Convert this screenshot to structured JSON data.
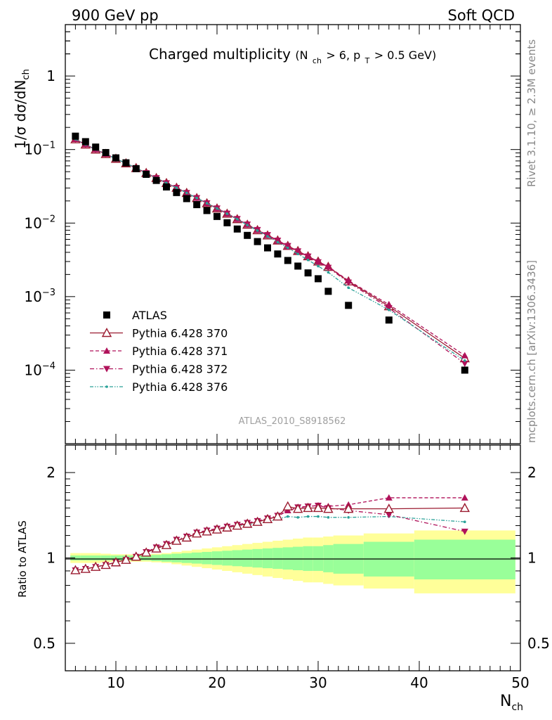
{
  "header": {
    "left": "900 GeV pp",
    "right": "Soft QCD",
    "side_top": "Rivet 3.1.10, ≥ 2.3M events",
    "side_bottom": "mcplots.cern.ch [arXiv:1306.3436]"
  },
  "colors": {
    "atlas": "#000000",
    "p370": "#9b1b30",
    "p371": "#b0125a",
    "p372": "#b0125a",
    "p376": "#2aa198",
    "band_inner": "#99ff99",
    "band_outer": "#ffff99"
  },
  "chart_data": [
    {
      "type": "scatter",
      "title": "Charged multiplicity",
      "title_cuts": {
        "a": "(N",
        "a_sub": "ch",
        "b": " > 6, p",
        "b_sub": "T",
        "c": " > 0.5 GeV)"
      },
      "ylabel": "1/σ dσ/dN",
      "ylabel_sub": "ch",
      "yscale": "log",
      "ylim": [
        1e-05,
        5
      ],
      "xlim": [
        5,
        50
      ],
      "ytick_labels": [
        {
          "value": 1,
          "base": "1",
          "exp": ""
        },
        {
          "value": 0.1,
          "base": "10",
          "exp": "−1"
        },
        {
          "value": 0.01,
          "base": "10",
          "exp": "−2"
        },
        {
          "value": 0.001,
          "base": "10",
          "exp": "−3"
        },
        {
          "value": 0.0001,
          "base": "10",
          "exp": "−4"
        }
      ],
      "watermark": "ATLAS_2010_S8918562",
      "legend_position": "bottom-left",
      "x": [
        6,
        7,
        8,
        9,
        10,
        11,
        12,
        13,
        14,
        15,
        16,
        17,
        18,
        19,
        20,
        21,
        22,
        23,
        24,
        25,
        26,
        27,
        28,
        29,
        30,
        31,
        33,
        37,
        44.5
      ],
      "series": [
        {
          "name": "ATLAS",
          "key": "atlas",
          "marker": "square",
          "line": "none",
          "values": [
            0.152,
            0.128,
            0.108,
            0.091,
            0.077,
            0.066,
            0.055,
            0.046,
            0.038,
            0.031,
            0.026,
            0.0215,
            0.0178,
            0.0148,
            0.0123,
            0.0101,
            0.0083,
            0.0068,
            0.0056,
            0.0046,
            0.0038,
            0.0031,
            0.0026,
            0.0021,
            0.00175,
            0.00118,
            0.00076,
            0.00048,
            0.0001
          ]
        },
        {
          "name": "Pythia 6.428 370",
          "key": "p370",
          "marker": "triangle-up-open",
          "line": "solid",
          "values": [
            0.138,
            0.117,
            0.1,
            0.087,
            0.075,
            0.065,
            0.056,
            0.048,
            0.041,
            0.035,
            0.0302,
            0.0257,
            0.0219,
            0.0186,
            0.0158,
            0.0134,
            0.0113,
            0.0095,
            0.008,
            0.0068,
            0.0058,
            0.0049,
            0.00417,
            0.00354,
            0.003,
            0.00254,
            0.00161,
            0.00074,
            0.000145
          ]
        },
        {
          "name": "Pythia 6.428 371",
          "key": "p371",
          "marker": "triangle-up",
          "line": "dashed",
          "values": [
            0.138,
            0.117,
            0.1,
            0.087,
            0.075,
            0.065,
            0.056,
            0.048,
            0.041,
            0.035,
            0.0302,
            0.0257,
            0.0219,
            0.0186,
            0.0158,
            0.0134,
            0.0113,
            0.0095,
            0.008,
            0.0068,
            0.0057,
            0.0048,
            0.0041,
            0.0035,
            0.003,
            0.00256,
            0.00165,
            0.00078,
            0.000158
          ]
        },
        {
          "name": "Pythia 6.428 372",
          "key": "p372",
          "marker": "triangle-down",
          "line": "dashdot",
          "values": [
            0.138,
            0.117,
            0.1,
            0.087,
            0.075,
            0.065,
            0.056,
            0.048,
            0.041,
            0.035,
            0.0302,
            0.0258,
            0.022,
            0.0187,
            0.0159,
            0.0135,
            0.0114,
            0.0096,
            0.0081,
            0.0069,
            0.0058,
            0.0049,
            0.00415,
            0.00352,
            0.00295,
            0.00248,
            0.00156,
            0.0007,
            0.000123
          ]
        },
        {
          "name": "Pythia 6.428 376",
          "key": "p376",
          "marker": "dot",
          "line": "dashdotdot",
          "values": [
            0.138,
            0.117,
            0.1,
            0.087,
            0.075,
            0.065,
            0.056,
            0.048,
            0.041,
            0.035,
            0.0302,
            0.0257,
            0.0219,
            0.0186,
            0.0158,
            0.0134,
            0.0113,
            0.0094,
            0.0079,
            0.0066,
            0.0055,
            0.0046,
            0.0038,
            0.00315,
            0.0026,
            0.00214,
            0.00132,
            0.00066,
            0.000135
          ]
        }
      ]
    },
    {
      "type": "scatter",
      "ylabel": "Ratio to ATLAS",
      "xlabel": "N",
      "xlabel_sub": "ch",
      "yscale": "log",
      "ylim": [
        0.4,
        2.5
      ],
      "xlim": [
        5,
        50
      ],
      "ytick_labels": [
        {
          "value": 2,
          "label": "2"
        },
        {
          "value": 1,
          "label": "1"
        },
        {
          "value": 0.5,
          "label": "0.5"
        }
      ],
      "xtick_labels": [
        {
          "value": 10,
          "label": "10"
        },
        {
          "value": 20,
          "label": "20"
        },
        {
          "value": 30,
          "label": "30"
        },
        {
          "value": 40,
          "label": "40"
        },
        {
          "value": 50,
          "label": "50"
        }
      ],
      "x": [
        6,
        7,
        8,
        9,
        10,
        11,
        12,
        13,
        14,
        15,
        16,
        17,
        18,
        19,
        20,
        21,
        22,
        23,
        24,
        25,
        26,
        27,
        28,
        29,
        30,
        31,
        33,
        37,
        44.5
      ],
      "uncertainty_bands": {
        "edges": [
          5.5,
          6.5,
          7.5,
          8.5,
          9.5,
          10.5,
          11.5,
          12.5,
          13.5,
          14.5,
          15.5,
          16.5,
          17.5,
          18.5,
          19.5,
          20.5,
          21.5,
          22.5,
          23.5,
          24.5,
          25.5,
          26.5,
          27.5,
          28.5,
          29.5,
          30.5,
          31.5,
          34.5,
          39.5,
          49.5
        ],
        "inner": [
          0.02,
          0.02,
          0.02,
          0.02,
          0.02,
          0.02,
          0.02,
          0.02,
          0.025,
          0.03,
          0.035,
          0.04,
          0.045,
          0.05,
          0.055,
          0.06,
          0.065,
          0.07,
          0.075,
          0.08,
          0.085,
          0.09,
          0.095,
          0.1,
          0.1,
          0.11,
          0.12,
          0.14,
          0.16
        ],
        "outer": [
          0.04,
          0.04,
          0.04,
          0.035,
          0.03,
          0.03,
          0.03,
          0.03,
          0.035,
          0.04,
          0.05,
          0.06,
          0.07,
          0.08,
          0.09,
          0.1,
          0.11,
          0.12,
          0.13,
          0.14,
          0.15,
          0.16,
          0.17,
          0.18,
          0.18,
          0.19,
          0.2,
          0.22,
          0.25
        ]
      },
      "series": [
        {
          "name": "Pythia 6.428 370",
          "key": "p370",
          "marker": "triangle-up-open",
          "line": "solid",
          "values": [
            0.905,
            0.915,
            0.93,
            0.945,
            0.965,
            0.985,
            1.01,
            1.045,
            1.08,
            1.11,
            1.15,
            1.18,
            1.22,
            1.24,
            1.26,
            1.28,
            1.3,
            1.32,
            1.34,
            1.37,
            1.4,
            1.52,
            1.49,
            1.5,
            1.5,
            1.49,
            1.49,
            1.49,
            1.5
          ]
        },
        {
          "name": "Pythia 6.428 371",
          "key": "p371",
          "marker": "triangle-up",
          "line": "dashed",
          "values": [
            0.905,
            0.915,
            0.93,
            0.945,
            0.965,
            0.985,
            1.01,
            1.045,
            1.08,
            1.11,
            1.15,
            1.18,
            1.22,
            1.24,
            1.26,
            1.28,
            1.3,
            1.32,
            1.34,
            1.37,
            1.4,
            1.47,
            1.5,
            1.52,
            1.53,
            1.52,
            1.54,
            1.63,
            1.63
          ]
        },
        {
          "name": "Pythia 6.428 372",
          "key": "p372",
          "marker": "triangle-down",
          "line": "dashdot",
          "values": [
            0.905,
            0.915,
            0.93,
            0.945,
            0.965,
            0.985,
            1.01,
            1.05,
            1.09,
            1.12,
            1.16,
            1.19,
            1.23,
            1.25,
            1.27,
            1.29,
            1.31,
            1.33,
            1.35,
            1.38,
            1.41,
            1.48,
            1.51,
            1.52,
            1.53,
            1.5,
            1.47,
            1.42,
            1.24
          ]
        },
        {
          "name": "Pythia 6.428 376",
          "key": "p376",
          "marker": "dot",
          "line": "dashdotdot",
          "values": [
            0.905,
            0.915,
            0.93,
            0.945,
            0.965,
            0.985,
            1.01,
            1.045,
            1.08,
            1.11,
            1.15,
            1.18,
            1.22,
            1.24,
            1.26,
            1.28,
            1.3,
            1.31,
            1.32,
            1.34,
            1.37,
            1.4,
            1.39,
            1.4,
            1.4,
            1.39,
            1.39,
            1.4,
            1.34
          ]
        }
      ]
    }
  ]
}
